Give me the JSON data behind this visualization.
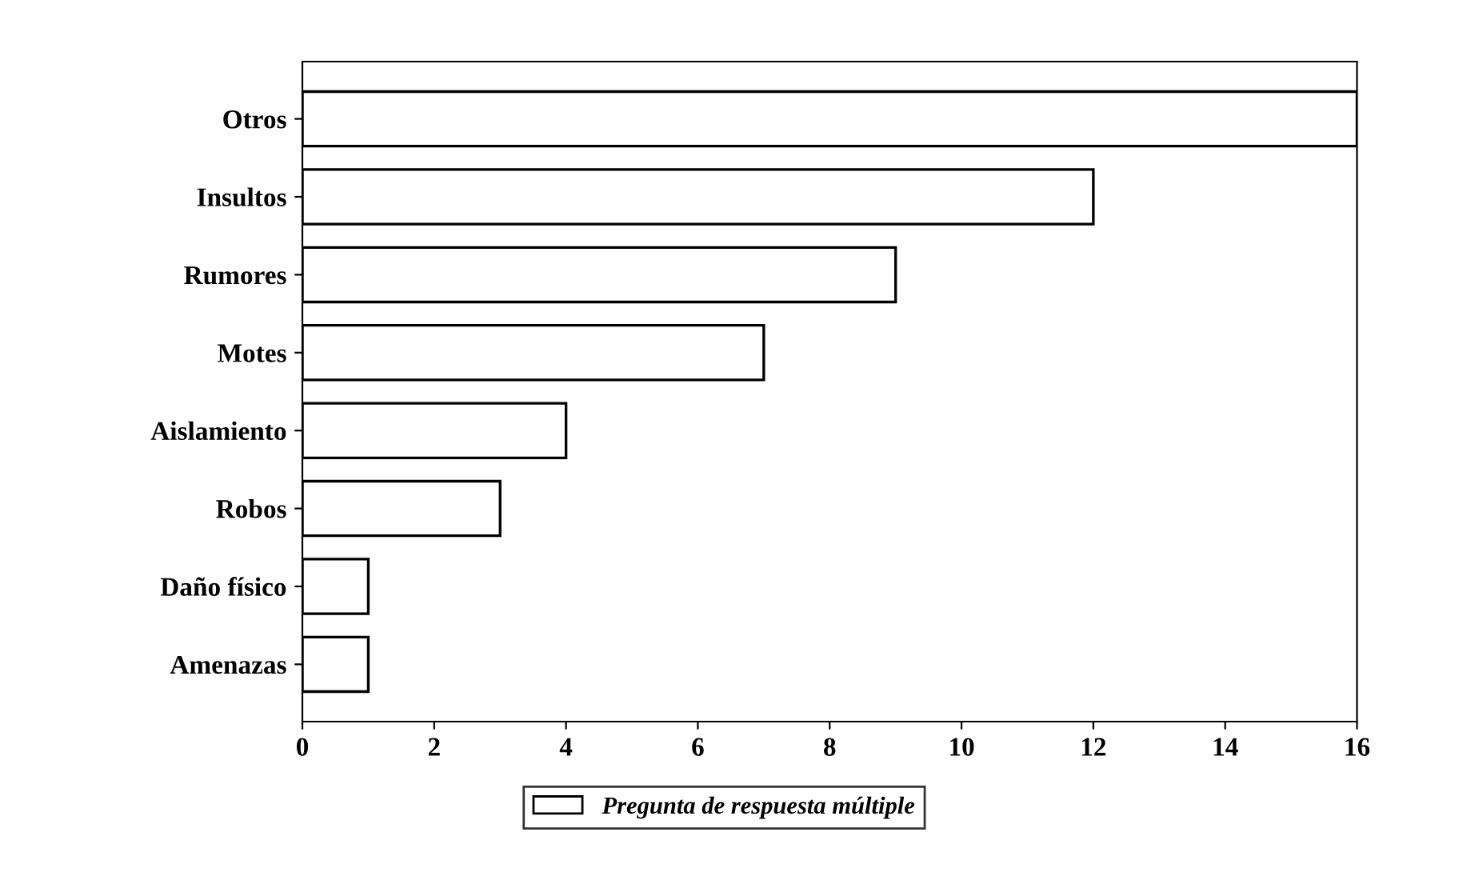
{
  "chart_data": {
    "type": "bar",
    "orientation": "horizontal",
    "categories": [
      "Otros",
      "Insultos",
      "Rumores",
      "Motes",
      "Aislamiento",
      "Robos",
      "Daño físico",
      "Amenazas"
    ],
    "series": [
      {
        "name": "Pregunta de respuesta múltiple",
        "color": "#ffffff",
        "values": [
          16,
          12,
          9,
          7,
          4,
          3,
          1,
          1
        ]
      }
    ],
    "xlim": [
      0,
      16
    ],
    "xticks": [
      0,
      2,
      4,
      6,
      8,
      10,
      12,
      14,
      16
    ],
    "grid": false,
    "legend": "bottom"
  }
}
